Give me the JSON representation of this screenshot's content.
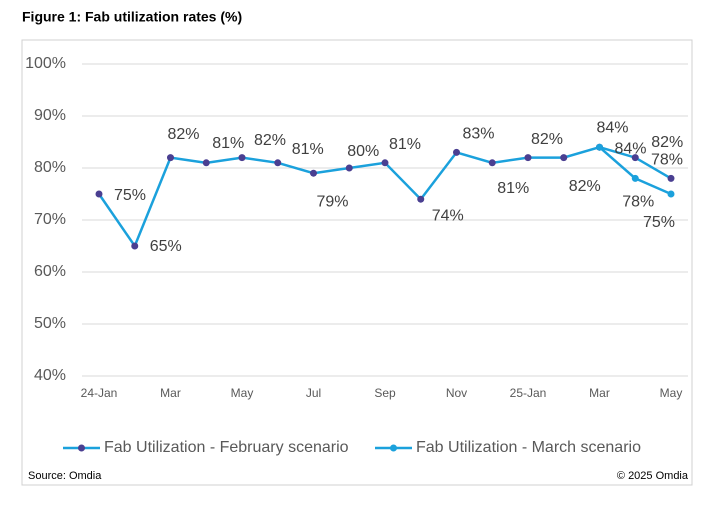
{
  "chart_data": {
    "type": "line",
    "title": "Figure 1: Fab utilization rates (%)",
    "source": "Source: Omdia",
    "copyright": "© 2025 Omdia",
    "categories": [
      "24-Jan",
      null,
      "Mar",
      null,
      "May",
      null,
      "Jul",
      null,
      "Sep",
      null,
      "Nov",
      null,
      "25-Jan",
      null,
      "Mar",
      null,
      "May"
    ],
    "series": [
      {
        "name": "Fab Utilization - February scenario",
        "color": "#1ba1dc",
        "marker_color": "#4a3f91",
        "values": [
          75,
          65,
          82,
          81,
          82,
          81,
          79,
          80,
          81,
          74,
          83,
          81,
          82,
          82,
          84,
          82,
          78
        ],
        "value_labels": [
          "75%",
          "65%",
          "82%",
          "81%",
          "82%",
          "81%",
          "79%",
          "80%",
          "81%",
          "74%",
          "83%",
          "81%",
          "82%",
          "82%",
          "84%",
          "82%",
          "78%"
        ]
      },
      {
        "name": "Fab Utilization - March scenario",
        "color": "#1ba1dc",
        "marker_color": "#1ba1dc",
        "values": [
          null,
          null,
          null,
          null,
          null,
          null,
          null,
          null,
          null,
          null,
          null,
          null,
          null,
          null,
          84,
          78,
          75
        ],
        "value_labels": [
          null,
          null,
          null,
          null,
          null,
          null,
          null,
          null,
          null,
          null,
          null,
          null,
          null,
          null,
          "84%",
          "78%",
          "75%"
        ]
      }
    ],
    "ylim": [
      40,
      100
    ],
    "yticks": [
      {
        "value": 40,
        "label": "40%"
      },
      {
        "value": 50,
        "label": "50%"
      },
      {
        "value": 60,
        "label": "60%"
      },
      {
        "value": 70,
        "label": "70%"
      },
      {
        "value": 80,
        "label": "80%"
      },
      {
        "value": 90,
        "label": "90%"
      },
      {
        "value": 100,
        "label": "100%"
      }
    ],
    "grid": true,
    "legend": "bottom"
  }
}
